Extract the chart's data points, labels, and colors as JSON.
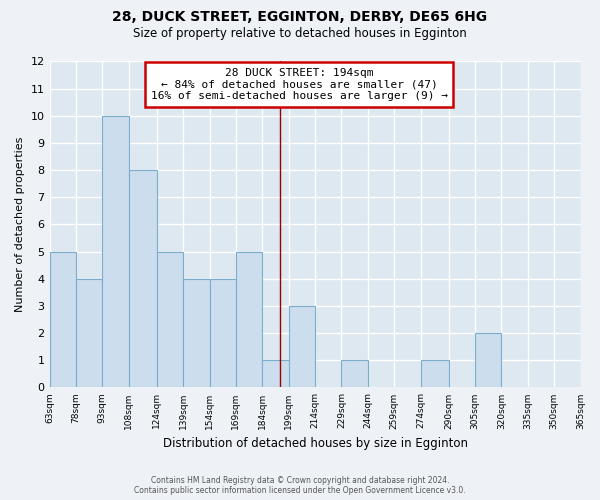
{
  "title": "28, DUCK STREET, EGGINTON, DERBY, DE65 6HG",
  "subtitle": "Size of property relative to detached houses in Egginton",
  "xlabel": "Distribution of detached houses by size in Egginton",
  "ylabel": "Number of detached properties",
  "bar_edges": [
    63,
    78,
    93,
    108,
    124,
    139,
    154,
    169,
    184,
    199,
    214,
    229,
    244,
    259,
    274,
    290,
    305,
    320,
    335,
    350,
    365
  ],
  "bar_heights": [
    5,
    4,
    10,
    8,
    5,
    4,
    4,
    5,
    1,
    3,
    0,
    1,
    0,
    0,
    1,
    0,
    2,
    0,
    0,
    0
  ],
  "bar_color": "#ccdded",
  "bar_edgecolor": "#7aaccc",
  "property_value": 194,
  "annotation_title": "28 DUCK STREET: 194sqm",
  "annotation_line1": "← 84% of detached houses are smaller (47)",
  "annotation_line2": "16% of semi-detached houses are larger (9) →",
  "annotation_box_edgecolor": "#cc0000",
  "vline_color": "#990000",
  "ylim": [
    0,
    12
  ],
  "yticks": [
    0,
    1,
    2,
    3,
    4,
    5,
    6,
    7,
    8,
    9,
    10,
    11,
    12
  ],
  "tick_labels": [
    "63sqm",
    "78sqm",
    "93sqm",
    "108sqm",
    "124sqm",
    "139sqm",
    "154sqm",
    "169sqm",
    "184sqm",
    "199sqm",
    "214sqm",
    "229sqm",
    "244sqm",
    "259sqm",
    "274sqm",
    "290sqm",
    "305sqm",
    "320sqm",
    "335sqm",
    "350sqm",
    "365sqm"
  ],
  "footer_line1": "Contains HM Land Registry data © Crown copyright and database right 2024.",
  "footer_line2": "Contains public sector information licensed under the Open Government Licence v3.0.",
  "bg_color": "#eef2f7",
  "grid_color": "#ffffff",
  "cell_color": "#dde8f0"
}
